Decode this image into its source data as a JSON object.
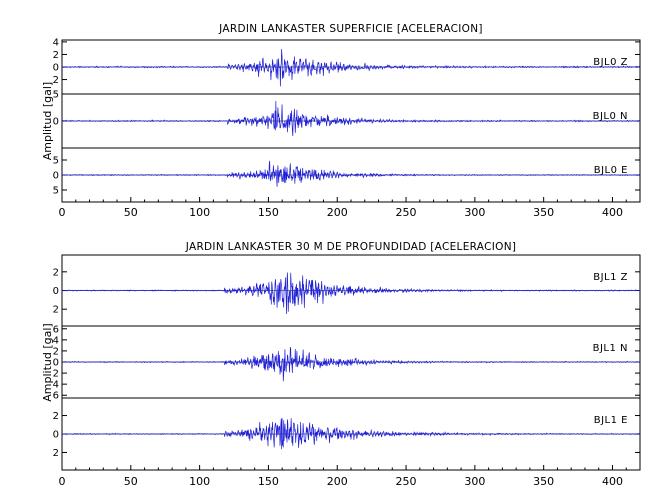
{
  "chart_data": [
    {
      "type": "line",
      "title": "JARDIN LANKASTER SUPERFICIE [ACELERACION]",
      "ylabel": "Amplitud [gal]",
      "xlabel": "",
      "xlim": [
        0,
        420
      ],
      "x_ticks": [
        "0",
        "50",
        "100",
        "150",
        "200",
        "250",
        "300",
        "350",
        "400"
      ],
      "color": "#1f1fd8",
      "panels": [
        {
          "label": "BJL0    Z",
          "ylim": [
            -4.3,
            4.3
          ],
          "y_ticks": [
            -2,
            0,
            2,
            4
          ],
          "y_tick_labels": [
            "2",
            "0",
            "2",
            "4"
          ],
          "onset": 120,
          "peak_time": 160,
          "peak": 4.2,
          "noise": 0.1,
          "decay": 30
        },
        {
          "label": "BJL0    N",
          "ylim": [
            -5,
            5
          ],
          "y_ticks": [
            -5,
            0,
            5
          ],
          "y_tick_labels": [
            "",
            "0",
            "5"
          ],
          "onset": 120,
          "peak_time": 160,
          "peak": 5.0,
          "noise": 0.1,
          "decay": 26
        },
        {
          "label": "BJL0    E",
          "ylim": [
            -9,
            9
          ],
          "y_ticks": [
            -5,
            0,
            5
          ],
          "y_tick_labels": [
            "5",
            "0",
            "5"
          ],
          "onset": 120,
          "peak_time": 158,
          "peak": 8.5,
          "noise": 0.15,
          "decay": 26
        }
      ]
    },
    {
      "type": "line",
      "title": "JARDIN LANKASTER 30 M DE PROFUNDIDAD [ACELERACION]",
      "ylabel": "Amplitud [gal]",
      "xlabel": "",
      "xlim": [
        0,
        420
      ],
      "x_ticks": [
        "0",
        "50",
        "100",
        "150",
        "200",
        "250",
        "300",
        "350",
        "400"
      ],
      "color": "#1f1fd8",
      "panels": [
        {
          "label": "BJL1    Z",
          "ylim": [
            -3.8,
            3.8
          ],
          "y_ticks": [
            -2,
            0,
            2,
            4
          ],
          "y_tick_labels": [
            "2",
            "0",
            "2",
            "4"
          ],
          "onset": 118,
          "peak_time": 165,
          "peak": 3.8,
          "noise": 0.05,
          "decay": 28
        },
        {
          "label": "BJL1    N",
          "ylim": [
            -6.5,
            6.5
          ],
          "y_ticks": [
            -6,
            -4,
            -2,
            0,
            2,
            4,
            6
          ],
          "y_tick_labels": [
            "6",
            "4",
            "2",
            "0",
            "2",
            "4",
            "6"
          ],
          "onset": 118,
          "peak_time": 160,
          "peak": 5.5,
          "noise": 0.08,
          "decay": 28
        },
        {
          "label": "BJL1    E",
          "ylim": [
            -3.9,
            3.9
          ],
          "y_ticks": [
            -2,
            0,
            2
          ],
          "y_tick_labels": [
            "2",
            "0",
            "2"
          ],
          "onset": 118,
          "peak_time": 160,
          "peak": 3.6,
          "noise": 0.05,
          "decay": 35
        }
      ]
    }
  ]
}
